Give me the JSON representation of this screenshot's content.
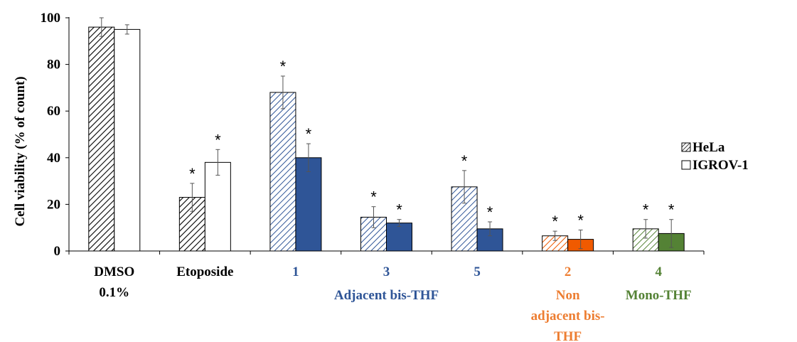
{
  "chart_data": {
    "type": "bar",
    "ylabel": "Cell viability (% of count)",
    "ylim": [
      0,
      100
    ],
    "yticks": [
      0,
      20,
      40,
      60,
      80,
      100
    ],
    "legend_position": "right",
    "grid": false,
    "categories": [
      {
        "label": "DMSO",
        "label2": "0.1%",
        "color": "#000000"
      },
      {
        "label": "Etoposide",
        "label2": "",
        "color": "#000000"
      },
      {
        "label": "1",
        "label2": "",
        "color": "#2F5597"
      },
      {
        "label": "3",
        "label2": "",
        "color": "#2F5597"
      },
      {
        "label": "5",
        "label2": "",
        "color": "#2F5597"
      },
      {
        "label": "2",
        "label2": "",
        "color": "#ED7D31"
      },
      {
        "label": "4",
        "label2": "",
        "color": "#548235"
      }
    ],
    "series": [
      {
        "name": "HeLa",
        "pattern": "hatched",
        "values": [
          96,
          23,
          68,
          14.5,
          27.5,
          6.5,
          9.5
        ],
        "errors": [
          4,
          6,
          7,
          4.5,
          7,
          2,
          4
        ],
        "significant": [
          false,
          true,
          true,
          true,
          true,
          true,
          true
        ]
      },
      {
        "name": "IGROV-1",
        "pattern": "solid",
        "values": [
          95,
          38,
          40,
          12,
          9.5,
          5,
          7.5
        ],
        "errors": [
          2,
          5.5,
          6,
          1.5,
          3,
          4,
          6
        ],
        "significant": [
          false,
          true,
          true,
          true,
          true,
          true,
          true
        ]
      }
    ],
    "bar_colors": [
      "#ffffff",
      "#ffffff",
      "#2F5597",
      "#2F5597",
      "#2F5597",
      "#F05A00",
      "#548235"
    ],
    "group_labels": [
      {
        "lines": [
          "Adjacent bis-THF"
        ],
        "color": "#2F5597",
        "categories": [
          2,
          3,
          4
        ]
      },
      {
        "lines": [
          "Non",
          "adjacent bis-",
          "THF"
        ],
        "color": "#ED7D31",
        "categories": [
          5
        ]
      },
      {
        "lines": [
          "Mono-THF"
        ],
        "color": "#548235",
        "categories": [
          6
        ]
      }
    ],
    "significance_marker": "*"
  }
}
